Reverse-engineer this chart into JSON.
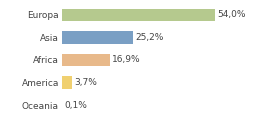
{
  "categories": [
    "Europa",
    "Asia",
    "Africa",
    "America",
    "Oceania"
  ],
  "values": [
    54.0,
    25.2,
    16.9,
    3.7,
    0.1
  ],
  "labels": [
    "54,0%",
    "25,2%",
    "16,9%",
    "3,7%",
    "0,1%"
  ],
  "bar_colors": [
    "#b5c98e",
    "#7a9fc4",
    "#e8b98a",
    "#f0d070",
    "#cccccc"
  ],
  "background_color": "#ffffff",
  "label_fontsize": 6.5,
  "tick_fontsize": 6.5,
  "xlim": [
    0,
    75
  ],
  "bar_height": 0.55
}
